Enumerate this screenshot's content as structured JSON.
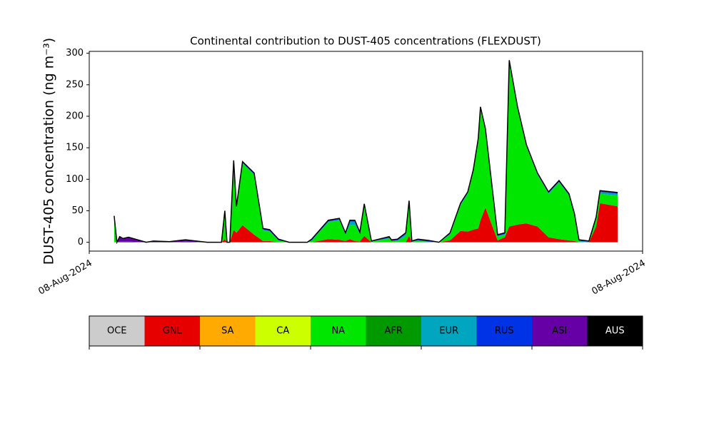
{
  "chart_data": {
    "type": "stacked_area",
    "title": "Continental contribution to DUST-405 concentrations (FLEXDUST)",
    "ylabel": "DUST-405 concentration (ng m⁻³)",
    "xlim": [
      0,
      100
    ],
    "xticks": [
      {
        "value": 0,
        "label": "08-Aug-2024"
      },
      {
        "value": 100,
        "label": "08-Aug-2024"
      }
    ],
    "ylim": [
      -14,
      303
    ],
    "yticks": [
      0,
      50,
      100,
      150,
      200,
      250,
      300
    ],
    "x": [
      4.5,
      5.0,
      5.5,
      6.1,
      7.1,
      10.3,
      11.6,
      14.5,
      17.4,
      21.3,
      23.9,
      24.5,
      24.9,
      25.4,
      26.1,
      26.6,
      27.7,
      29.8,
      31.4,
      32.6,
      34.2,
      36.1,
      39.4,
      40.2,
      43.2,
      45.2,
      46.3,
      47.1,
      48.0,
      48.9,
      49.7,
      51.0,
      54.2,
      54.6,
      55.7,
      57.2,
      57.8,
      58.3,
      59.4,
      61.3,
      63.2,
      65.2,
      67.1,
      68.4,
      69.4,
      70.3,
      70.7,
      71.6,
      73.8,
      75.1,
      75.9,
      77.4,
      79.0,
      81.0,
      83.0,
      84.9,
      86.7,
      87.7,
      88.5,
      90.3,
      91.6,
      92.3,
      95.5
    ],
    "series": [
      {
        "name": "OCE",
        "color": "#cccccc",
        "values": [
          0,
          0,
          0,
          0,
          0,
          0,
          0,
          0,
          0,
          0,
          0,
          0,
          0,
          0,
          0,
          0,
          0,
          0,
          0,
          0,
          0,
          0,
          0,
          0,
          0,
          0,
          0,
          0,
          0,
          0,
          0,
          0,
          0,
          0,
          0,
          0,
          0,
          0,
          0,
          0,
          0,
          0,
          0,
          0,
          0,
          0,
          0,
          0,
          0,
          0,
          0,
          0,
          0,
          0,
          0,
          0,
          0,
          0,
          0,
          0,
          0,
          0,
          0
        ]
      },
      {
        "name": "GNL",
        "color": "#e60000",
        "values": [
          0,
          0,
          0,
          0,
          0,
          0,
          0,
          0,
          0,
          0,
          0,
          5,
          0,
          0,
          20,
          15,
          27,
          12,
          2,
          2,
          0,
          0,
          0,
          0,
          5,
          4,
          2,
          5,
          2,
          1,
          10,
          0,
          0,
          0,
          0,
          0,
          10,
          0,
          0,
          0,
          0,
          3,
          18,
          17,
          20,
          22,
          35,
          55,
          3,
          8,
          25,
          28,
          30,
          25,
          8,
          5,
          3,
          2,
          0,
          0,
          25,
          62,
          57
        ]
      },
      {
        "name": "SA",
        "color": "#ffaa00",
        "values": [
          0,
          0,
          0,
          0,
          0,
          0,
          0,
          0,
          0,
          0,
          0,
          0,
          0,
          0,
          0,
          0,
          0,
          0,
          0,
          0,
          0,
          0,
          0,
          0,
          0,
          0,
          0,
          0,
          0,
          0,
          0,
          0,
          0,
          0,
          0,
          0,
          0,
          0,
          0,
          0,
          0,
          0,
          0,
          0,
          0,
          0,
          0,
          0,
          0,
          0,
          0,
          0,
          0,
          0,
          0,
          0,
          0,
          0,
          0,
          0,
          0,
          0,
          0
        ]
      },
      {
        "name": "CA",
        "color": "#ccff00",
        "values": [
          0,
          0,
          0,
          0,
          0,
          0,
          0,
          0,
          0,
          0,
          0,
          0,
          0,
          0,
          0,
          0,
          0,
          0,
          0,
          0,
          0,
          0,
          0,
          0,
          0,
          0,
          0,
          0,
          0,
          0,
          0,
          0,
          0,
          0,
          0,
          0,
          0,
          0,
          0,
          0,
          0,
          0,
          0,
          0,
          0,
          0,
          0,
          0,
          0,
          0,
          0,
          0,
          0,
          0,
          0,
          0,
          0,
          0,
          0,
          0,
          0,
          0,
          0
        ]
      },
      {
        "name": "NA",
        "color": "#00e600",
        "values": [
          39,
          0,
          0,
          0,
          0,
          0,
          0,
          0,
          0,
          0,
          0,
          42,
          0,
          0,
          107,
          39,
          98,
          95,
          17,
          15,
          3,
          0,
          0,
          3,
          27,
          31,
          10,
          22,
          25,
          12,
          48,
          1,
          6,
          2,
          2,
          10,
          53,
          1,
          2,
          1,
          0,
          9,
          41,
          60,
          92,
          140,
          177,
          122,
          6,
          4,
          261,
          184,
          122,
          82,
          69,
          90,
          71,
          40,
          1,
          0,
          12,
          15,
          17
        ]
      },
      {
        "name": "AFR",
        "color": "#009900",
        "values": [
          0,
          0,
          0,
          0,
          0,
          0,
          0,
          0,
          0,
          0,
          0,
          0,
          0,
          0,
          0,
          0,
          0,
          0,
          0,
          0,
          0,
          0,
          0,
          0,
          0,
          0,
          0,
          0,
          0,
          0,
          0,
          0,
          0,
          0,
          0,
          0,
          0,
          0,
          0,
          0,
          0,
          0,
          0,
          0,
          0,
          0,
          0,
          0,
          0,
          0,
          0,
          0,
          0,
          0,
          0,
          0,
          0,
          0,
          0,
          0,
          0,
          0,
          0
        ]
      },
      {
        "name": "EUR",
        "color": "#00a6bf",
        "values": [
          1,
          0,
          0,
          0,
          0,
          0,
          0,
          0,
          0,
          0,
          0,
          1,
          0,
          0,
          1,
          1,
          1,
          1,
          1,
          1,
          0,
          0,
          0,
          0,
          1,
          1,
          1,
          6,
          6,
          1,
          1,
          0,
          1,
          0,
          1,
          3,
          1,
          0,
          1,
          0,
          0,
          1,
          1,
          1,
          1,
          1,
          1,
          1,
          1,
          1,
          1,
          1,
          1,
          1,
          1,
          1,
          1,
          1,
          1,
          1,
          1,
          3,
          3
        ]
      },
      {
        "name": "RUS",
        "color": "#0033e6",
        "values": [
          1,
          0,
          1,
          1,
          1,
          0,
          0,
          0,
          1,
          0,
          0,
          1,
          0,
          0,
          1,
          1,
          1,
          1,
          1,
          1,
          1,
          0,
          0,
          1,
          1,
          1,
          1,
          1,
          1,
          1,
          1,
          0,
          1,
          1,
          1,
          1,
          1,
          0,
          1,
          1,
          0,
          1,
          1,
          1,
          1,
          1,
          1,
          1,
          1,
          1,
          1,
          1,
          1,
          1,
          1,
          1,
          1,
          1,
          1,
          0,
          1,
          1,
          1
        ]
      },
      {
        "name": "ASI",
        "color": "#6600a6",
        "values": [
          1,
          0,
          8,
          5,
          7,
          0,
          2,
          1,
          3,
          0,
          0,
          1,
          0,
          0,
          1,
          1,
          1,
          1,
          1,
          1,
          1,
          0,
          0,
          1,
          1,
          1,
          1,
          1,
          1,
          1,
          1,
          1,
          1,
          1,
          1,
          1,
          1,
          1,
          1,
          1,
          0,
          1,
          1,
          1,
          1,
          1,
          1,
          1,
          1,
          1,
          1,
          1,
          1,
          1,
          1,
          1,
          1,
          1,
          1,
          1,
          1,
          1,
          1
        ]
      },
      {
        "name": "AUS",
        "color": "#000000",
        "values": [
          0,
          0,
          0,
          0,
          0,
          0,
          0,
          0,
          0,
          0,
          0,
          0,
          0,
          0,
          0,
          0,
          0,
          0,
          0,
          0,
          0,
          0,
          0,
          0,
          0,
          0,
          0,
          0,
          0,
          0,
          0,
          0,
          0,
          0,
          0,
          0,
          0,
          0,
          0,
          0,
          0,
          0,
          0,
          0,
          0,
          0,
          0,
          0,
          0,
          0,
          0,
          0,
          0,
          0,
          0,
          0,
          0,
          0,
          0,
          0,
          0,
          0,
          0
        ]
      }
    ]
  }
}
